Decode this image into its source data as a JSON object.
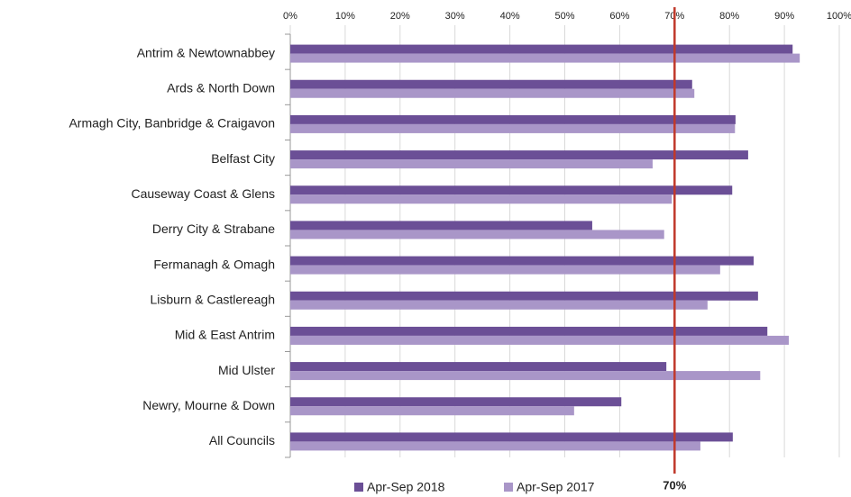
{
  "chart_data": {
    "type": "bar",
    "orientation": "horizontal",
    "categories": [
      "Antrim & Newtownabbey",
      "Ards & North Down",
      "Armagh City, Banbridge & Craigavon",
      "Belfast City",
      "Causeway Coast & Glens",
      "Derry City & Strabane",
      "Fermanagh & Omagh",
      "Lisburn & Castlereagh",
      "Mid & East Antrim",
      "Mid Ulster",
      "Newry, Mourne & Down",
      "All Councils"
    ],
    "series": [
      {
        "name": "Apr-Sep 2018",
        "color": "#6b4f96",
        "values": [
          91.5,
          73.2,
          81.1,
          83.4,
          80.5,
          55.0,
          84.4,
          85.2,
          86.9,
          68.5,
          60.3,
          80.6
        ]
      },
      {
        "name": "Apr-Sep 2017",
        "color": "#a996c8",
        "values": [
          92.8,
          73.6,
          81.0,
          66.0,
          69.5,
          68.1,
          78.3,
          76.0,
          90.8,
          85.6,
          51.7,
          74.7
        ]
      }
    ],
    "xlim": [
      0,
      100
    ],
    "xticks": [
      {
        "value": 0,
        "label": "0%"
      },
      {
        "value": 10,
        "label": "10%"
      },
      {
        "value": 20,
        "label": "20%"
      },
      {
        "value": 30,
        "label": "30%"
      },
      {
        "value": 40,
        "label": "40%"
      },
      {
        "value": 50,
        "label": "50%"
      },
      {
        "value": 60,
        "label": "60%"
      },
      {
        "value": 70,
        "label": "70%"
      },
      {
        "value": 80,
        "label": "80%"
      },
      {
        "value": 90,
        "label": "90%"
      },
      {
        "value": 100,
        "label": "100%"
      }
    ],
    "grid": true,
    "target": {
      "value": 70,
      "label": "70%",
      "color": "#c0392b"
    },
    "legend": "bottom"
  }
}
